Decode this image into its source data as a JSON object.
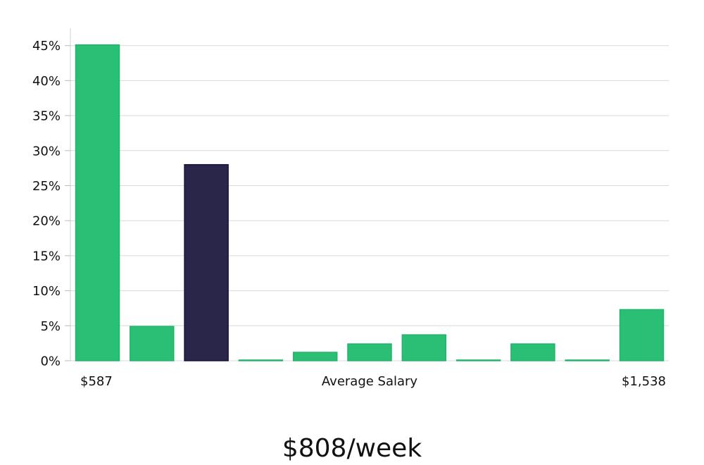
{
  "chart_data": {
    "type": "bar",
    "xlabel": "Average Salary",
    "x_start_label": "$587",
    "x_end_label": "$1,538",
    "ylim": [
      0,
      47
    ],
    "yticks": [
      "0%",
      "5%",
      "10%",
      "15%",
      "20%",
      "25%",
      "30%",
      "35%",
      "40%",
      "45%"
    ],
    "ytick_values": [
      0,
      5,
      10,
      15,
      20,
      25,
      30,
      35,
      40,
      45
    ],
    "values": [
      45.1,
      4.9,
      28.0,
      0.05,
      1.2,
      2.4,
      3.7,
      0.05,
      2.4,
      0.05,
      7.3
    ],
    "highlight_index": 2,
    "colors": {
      "bar": "#2bbf76",
      "bar_edge": "#22b56b",
      "highlight": "#29264a",
      "highlight_edge": "#15133a",
      "grid": "#d9d9d9"
    }
  },
  "headline": "$808/week"
}
